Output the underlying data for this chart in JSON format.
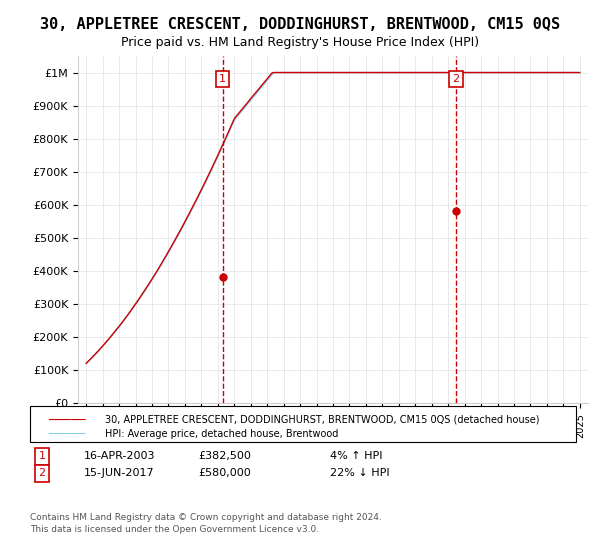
{
  "title": "30, APPLETREE CRESCENT, DODDINGHURST, BRENTWOOD, CM15 0QS",
  "subtitle": "Price paid vs. HM Land Registry's House Price Index (HPI)",
  "ylim": [
    0,
    1050000
  ],
  "yticks": [
    0,
    100000,
    200000,
    300000,
    400000,
    500000,
    600000,
    700000,
    800000,
    900000,
    1000000
  ],
  "ytick_labels": [
    "£0",
    "£100K",
    "£200K",
    "£300K",
    "£400K",
    "£500K",
    "£600K",
    "£700K",
    "£800K",
    "£900K",
    "£1M"
  ],
  "hpi_color": "#87CEEB",
  "price_color": "#cc0000",
  "transaction1": {
    "date": "16-APR-2003",
    "price": 382500,
    "label": "1",
    "pct": "4%",
    "direction": "↑"
  },
  "transaction2": {
    "date": "15-JUN-2017",
    "price": 580000,
    "label": "2",
    "pct": "22%",
    "direction": "↓"
  },
  "legend_line1": "30, APPLETREE CRESCENT, DODDINGHURST, BRENTWOOD, CM15 0QS (detached house)",
  "legend_line2": "HPI: Average price, detached house, Brentwood",
  "footer1": "Contains HM Land Registry data © Crown copyright and database right 2024.",
  "footer2": "This data is licensed under the Open Government Licence v3.0.",
  "background_color": "#ffffff",
  "plot_bg_color": "#ffffff",
  "grid_color": "#e0e0e0",
  "title_fontsize": 11,
  "subtitle_fontsize": 9
}
